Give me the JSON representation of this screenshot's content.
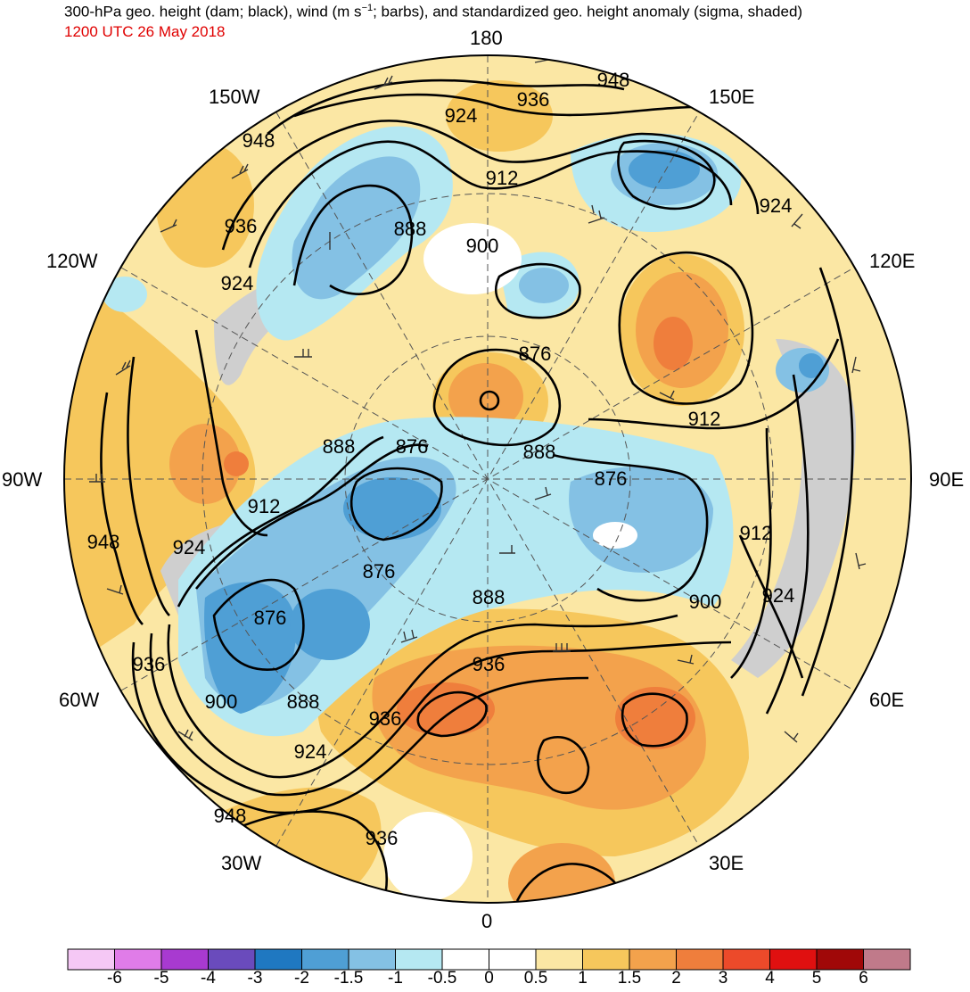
{
  "header": {
    "title": "300-hPa geo. height (dam; black), wind (m s",
    "title_sup": "−1",
    "title_rest": "; barbs), and standardized geo. height anomaly (sigma, shaded)",
    "valid_time": "1200 UTC 26 May 2018",
    "valid_time_color": "#e00000"
  },
  "map": {
    "projection": "north-polar-stereographic",
    "longitude_labels": {
      "top": "180",
      "bottom": "0",
      "left": "90W",
      "right": "90E",
      "upper_left_1": "150W",
      "upper_left_2": "120W",
      "upper_right_1": "150E",
      "upper_right_2": "120E",
      "lower_left_1": "60W",
      "lower_left_2": "30W",
      "lower_right_1": "60E",
      "lower_right_2": "30E"
    },
    "height_contour_labels": [
      "948",
      "936",
      "924",
      "912",
      "900",
      "888",
      "876",
      "876",
      "888",
      "900",
      "912",
      "924",
      "936",
      "948",
      "912",
      "888",
      "900",
      "876",
      "888",
      "924",
      "912",
      "948",
      "924",
      "912",
      "936",
      "876",
      "888",
      "876",
      "900",
      "888",
      "936",
      "924",
      "900",
      "936",
      "936",
      "948"
    ]
  },
  "colorbar": {
    "colors": [
      "#f5c8f5",
      "#e07ce8",
      "#a83ad0",
      "#6a4bbc",
      "#1f78c1",
      "#4f9fd5",
      "#84c1e4",
      "#b5e8f2",
      "#ffffff",
      "#ffffff",
      "#fbe7a4",
      "#f6c75c",
      "#f3a24c",
      "#ef7e3c",
      "#ec4a2a",
      "#e01010",
      "#a00808",
      "#c07a8a"
    ],
    "labels": [
      "-6",
      "-5",
      "-4",
      "-3",
      "-2",
      "-1.5",
      "-1",
      "-0.5",
      "0",
      "0.5",
      "1",
      "1.5",
      "2",
      "3",
      "4",
      "5",
      "6"
    ]
  }
}
